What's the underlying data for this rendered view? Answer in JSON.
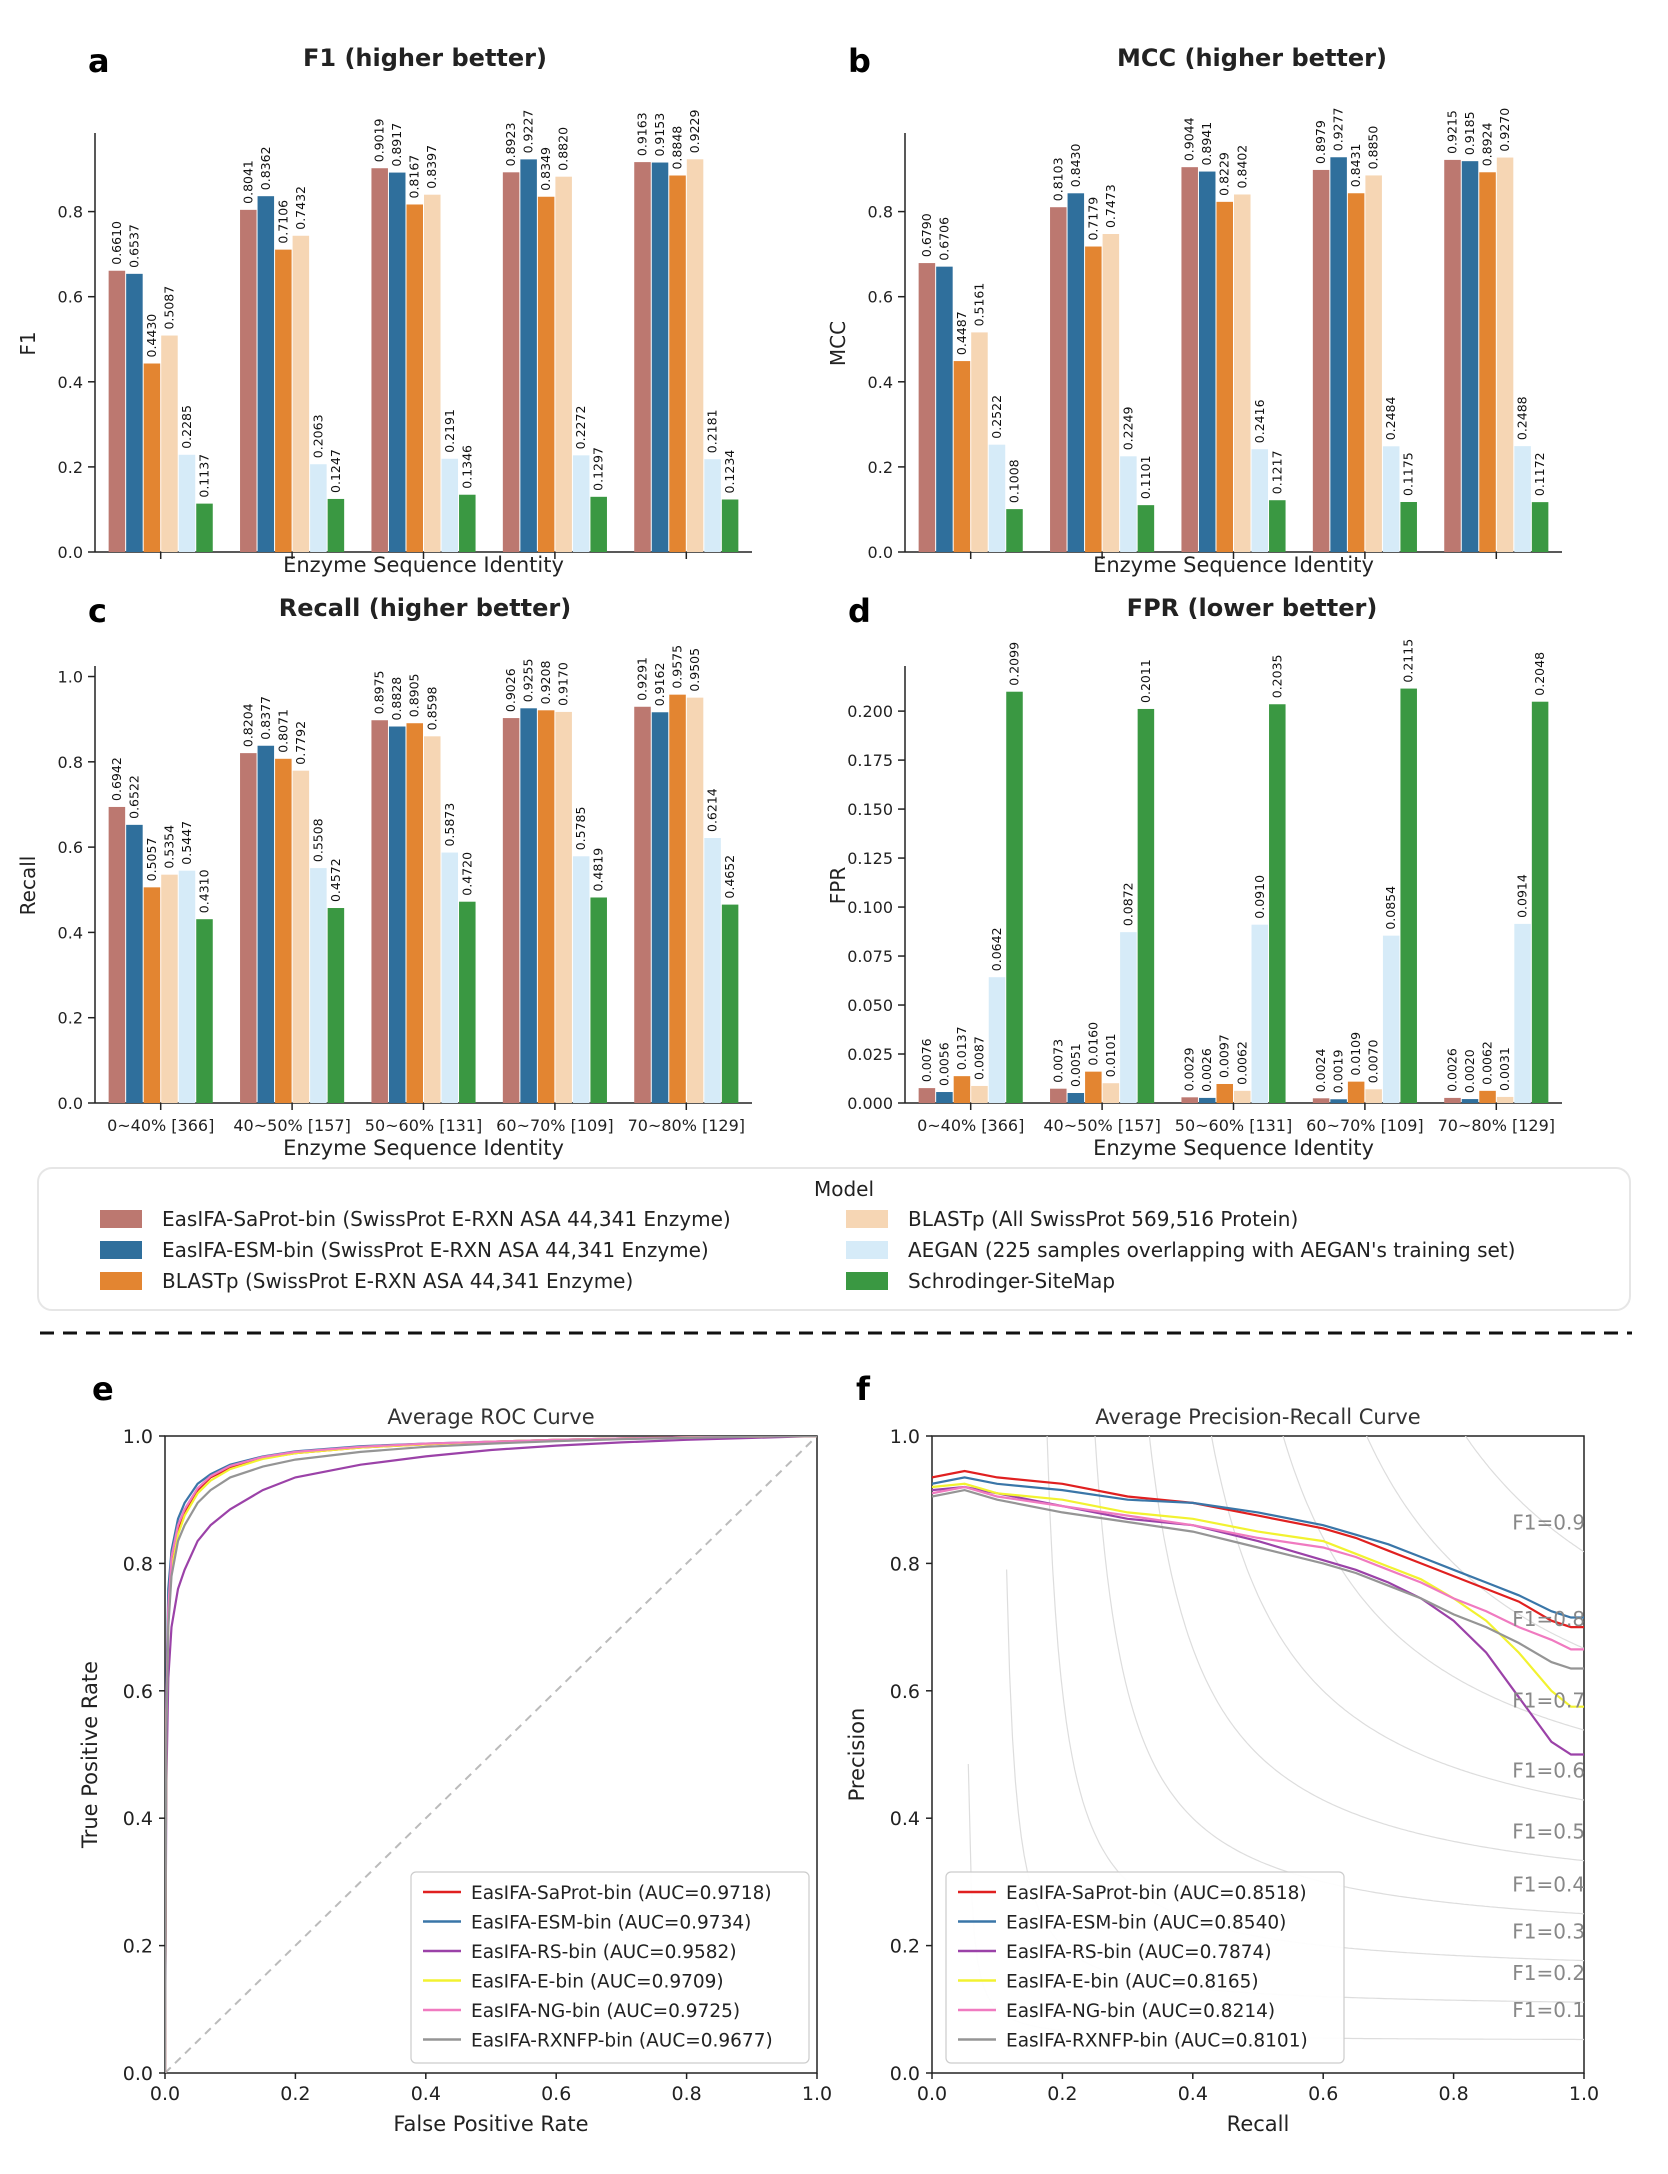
{
  "colors": {
    "saprot": "#bc7870",
    "esm": "#2f6f9c",
    "blastp_e": "#e38531",
    "blastp_all": "#f6d6b4",
    "aegan": "#d6ebf8",
    "schrodinger": "#3a9842",
    "rs": "#9b42a8",
    "e": "#f2f230",
    "ng": "#f07ac0",
    "rxnfp": "#959595",
    "saprot_line": "#e02020",
    "esm_line": "#3a76a8",
    "grid": "#dddddd",
    "diag": "#bbbbbb"
  },
  "bar_panels": {
    "categories": [
      "0~40% [366]",
      "40~50% [157]",
      "50~60% [131]",
      "60~70% [109]",
      "70~80% [129]"
    ],
    "xlabel": "Enzyme Sequence Identity",
    "series_keys": [
      "saprot",
      "esm",
      "blastp_e",
      "blastp_all",
      "aegan",
      "schrodinger"
    ]
  },
  "legend": {
    "title": "Model",
    "items": [
      "EasIFA-SaProt-bin (SwissProt E-RXN ASA 44,341 Enzyme)",
      "EasIFA-ESM-bin (SwissProt E-RXN ASA 44,341 Enzyme)",
      "BLASTp (SwissProt E-RXN ASA 44,341 Enzyme)",
      "BLASTp (All SwissProt 569,516 Protein)",
      "AEGAN (225 samples overlapping with AEGAN's training set)",
      "Schrodinger-SiteMap"
    ]
  },
  "chart_data": [
    {
      "panel": "a",
      "type": "bar",
      "title": "F1 (higher better)",
      "ylabel": "F1",
      "xlabel": "Enzyme Sequence Identity",
      "ylim": [
        0,
        0.98
      ],
      "yticks": [
        "0.0",
        "0.2",
        "0.4",
        "0.6",
        "0.8"
      ],
      "categories": [
        "0~40% [366]",
        "40~50% [157]",
        "50~60% [131]",
        "60~70% [109]",
        "70~80% [129]"
      ],
      "series": [
        {
          "name": "EasIFA-SaProt-bin (SwissProt E-RXN ASA 44,341 Enzyme)",
          "values": [
            "0.6610",
            "0.8041",
            "0.9019",
            "0.8923",
            "0.9163"
          ]
        },
        {
          "name": "EasIFA-ESM-bin (SwissProt E-RXN ASA 44,341 Enzyme)",
          "values": [
            "0.6537",
            "0.8362",
            "0.8917",
            "0.9227",
            "0.9153"
          ]
        },
        {
          "name": "BLASTp (SwissProt E-RXN ASA 44,341 Enzyme)",
          "values": [
            "0.4430",
            "0.7106",
            "0.8167",
            "0.8349",
            "0.8848"
          ]
        },
        {
          "name": "BLASTp (All SwissProt 569,516 Protein)",
          "values": [
            "0.5087",
            "0.7432",
            "0.8397",
            "0.8820",
            "0.9229"
          ]
        },
        {
          "name": "AEGAN (225 samples overlapping with AEGAN's training set)",
          "values": [
            "0.2285",
            "0.2063",
            "0.2191",
            "0.2272",
            "0.2181"
          ]
        },
        {
          "name": "Schrodinger-SiteMap",
          "values": [
            "0.1137",
            "0.1247",
            "0.1346",
            "0.1297",
            "0.1234"
          ]
        }
      ]
    },
    {
      "panel": "b",
      "type": "bar",
      "title": "MCC (higher better)",
      "ylabel": "MCC",
      "xlabel": "Enzyme Sequence Identity",
      "ylim": [
        0,
        0.98
      ],
      "yticks": [
        "0.0",
        "0.2",
        "0.4",
        "0.6",
        "0.8"
      ],
      "categories": [
        "0~40% [366]",
        "40~50% [157]",
        "50~60% [131]",
        "60~70% [109]",
        "70~80% [129]"
      ],
      "series": [
        {
          "name": "EasIFA-SaProt-bin (SwissProt E-RXN ASA 44,341 Enzyme)",
          "values": [
            "0.6790",
            "0.8103",
            "0.9044",
            "0.8979",
            "0.9215"
          ]
        },
        {
          "name": "EasIFA-ESM-bin (SwissProt E-RXN ASA 44,341 Enzyme)",
          "values": [
            "0.6706",
            "0.8430",
            "0.8941",
            "0.9277",
            "0.9185"
          ]
        },
        {
          "name": "BLASTp (SwissProt E-RXN ASA 44,341 Enzyme)",
          "values": [
            "0.4487",
            "0.7179",
            "0.8229",
            "0.8431",
            "0.8924"
          ]
        },
        {
          "name": "BLASTp (All SwissProt 569,516 Protein)",
          "values": [
            "0.5161",
            "0.7473",
            "0.8402",
            "0.8850",
            "0.9270"
          ]
        },
        {
          "name": "AEGAN (225 samples overlapping with AEGAN's training set)",
          "values": [
            "0.2522",
            "0.2249",
            "0.2416",
            "0.2484",
            "0.2488"
          ]
        },
        {
          "name": "Schrodinger-SiteMap",
          "values": [
            "0.1008",
            "0.1101",
            "0.1217",
            "0.1175",
            "0.1172"
          ]
        }
      ]
    },
    {
      "panel": "c",
      "type": "bar",
      "title": "Recall (higher better)",
      "ylabel": "Recall",
      "xlabel": "Enzyme Sequence Identity",
      "ylim": [
        0,
        1.02
      ],
      "yticks": [
        "0.0",
        "0.2",
        "0.4",
        "0.6",
        "0.8",
        "1.0"
      ],
      "categories": [
        "0~40% [366]",
        "40~50% [157]",
        "50~60% [131]",
        "60~70% [109]",
        "70~80% [129]"
      ],
      "series": [
        {
          "name": "EasIFA-SaProt-bin (SwissProt E-RXN ASA 44,341 Enzyme)",
          "values": [
            "0.6942",
            "0.8204",
            "0.8975",
            "0.9026",
            "0.9291"
          ]
        },
        {
          "name": "EasIFA-ESM-bin (SwissProt E-RXN ASA 44,341 Enzyme)",
          "values": [
            "0.6522",
            "0.8377",
            "0.8828",
            "0.9255",
            "0.9162"
          ]
        },
        {
          "name": "BLASTp (SwissProt E-RXN ASA 44,341 Enzyme)",
          "values": [
            "0.5057",
            "0.8071",
            "0.8905",
            "0.9208",
            "0.9575"
          ]
        },
        {
          "name": "BLASTp (All SwissProt 569,516 Protein)",
          "values": [
            "0.5354",
            "0.7792",
            "0.8598",
            "0.9170",
            "0.9505"
          ]
        },
        {
          "name": "AEGAN (225 samples overlapping with AEGAN's training set)",
          "values": [
            "0.5447",
            "0.5508",
            "0.5873",
            "0.5785",
            "0.6214"
          ]
        },
        {
          "name": "Schrodinger-SiteMap",
          "values": [
            "0.4310",
            "0.4572",
            "0.4720",
            "0.4819",
            "0.4652"
          ]
        }
      ]
    },
    {
      "panel": "d",
      "type": "bar",
      "title": "FPR (lower better)",
      "ylabel": "FPR",
      "xlabel": "Enzyme Sequence Identity",
      "ylim": [
        0,
        0.222
      ],
      "yticks": [
        "0.000",
        "0.025",
        "0.050",
        "0.075",
        "0.100",
        "0.125",
        "0.150",
        "0.175",
        "0.200"
      ],
      "categories": [
        "0~40% [366]",
        "40~50% [157]",
        "50~60% [131]",
        "60~70% [109]",
        "70~80% [129]"
      ],
      "series": [
        {
          "name": "EasIFA-SaProt-bin (SwissProt E-RXN ASA 44,341 Enzyme)",
          "values": [
            "0.0076",
            "0.0073",
            "0.0029",
            "0.0024",
            "0.0026"
          ]
        },
        {
          "name": "EasIFA-ESM-bin (SwissProt E-RXN ASA 44,341 Enzyme)",
          "values": [
            "0.0056",
            "0.0051",
            "0.0026",
            "0.0019",
            "0.0020"
          ]
        },
        {
          "name": "BLASTp (SwissProt E-RXN ASA 44,341 Enzyme)",
          "values": [
            "0.0137",
            "0.0160",
            "0.0097",
            "0.0109",
            "0.0062"
          ]
        },
        {
          "name": "BLASTp (All SwissProt 569,516 Protein)",
          "values": [
            "0.0087",
            "0.0101",
            "0.0062",
            "0.0070",
            "0.0031"
          ]
        },
        {
          "name": "AEGAN (225 samples overlapping with AEGAN's training set)",
          "values": [
            "0.0642",
            "0.0872",
            "0.0910",
            "0.0854",
            "0.0914"
          ]
        },
        {
          "name": "Schrodinger-SiteMap",
          "values": [
            "0.2099",
            "0.2011",
            "0.2035",
            "0.2115",
            "0.2048"
          ]
        }
      ]
    },
    {
      "panel": "e",
      "type": "line",
      "title": "Average ROC Curve",
      "xlabel": "False Positive Rate",
      "ylabel": "True Positive Rate",
      "xlim": [
        0,
        1
      ],
      "ylim": [
        0,
        1
      ],
      "ticks": [
        "0.0",
        "0.2",
        "0.4",
        "0.6",
        "0.8",
        "1.0"
      ],
      "legend_position": "lower right",
      "series": [
        {
          "name": "EasIFA-SaProt-bin (AUC=0.9718)",
          "color_key": "saprot_line",
          "x": [
            0,
            0.002,
            0.005,
            0.01,
            0.02,
            0.03,
            0.05,
            0.07,
            0.1,
            0.15,
            0.2,
            0.3,
            0.4,
            0.5,
            0.6,
            0.7,
            0.8,
            0.9,
            1.0
          ],
          "y": [
            0,
            0.55,
            0.72,
            0.8,
            0.85,
            0.88,
            0.915,
            0.935,
            0.95,
            0.965,
            0.973,
            0.982,
            0.987,
            0.991,
            0.994,
            0.996,
            0.998,
            0.999,
            1.0
          ]
        },
        {
          "name": "EasIFA-ESM-bin (AUC=0.9734)",
          "color_key": "esm_line",
          "x": [
            0,
            0.002,
            0.005,
            0.01,
            0.02,
            0.03,
            0.05,
            0.07,
            0.1,
            0.15,
            0.2,
            0.3,
            0.4,
            0.5,
            0.6,
            0.7,
            0.8,
            0.9,
            1.0
          ],
          "y": [
            0,
            0.6,
            0.76,
            0.82,
            0.87,
            0.895,
            0.925,
            0.94,
            0.955,
            0.968,
            0.976,
            0.984,
            0.988,
            0.991,
            0.994,
            0.996,
            0.998,
            0.999,
            1.0
          ]
        },
        {
          "name": "EasIFA-RS-bin (AUC=0.9582)",
          "color_key": "rs",
          "x": [
            0,
            0.002,
            0.005,
            0.01,
            0.02,
            0.03,
            0.05,
            0.07,
            0.1,
            0.15,
            0.2,
            0.3,
            0.4,
            0.5,
            0.6,
            0.7,
            0.8,
            0.9,
            1.0
          ],
          "y": [
            0,
            0.45,
            0.62,
            0.7,
            0.76,
            0.79,
            0.835,
            0.86,
            0.885,
            0.915,
            0.935,
            0.955,
            0.968,
            0.978,
            0.985,
            0.99,
            0.994,
            0.997,
            1.0
          ]
        },
        {
          "name": "EasIFA-E-bin  (AUC=0.9709)",
          "color_key": "e",
          "x": [
            0,
            0.002,
            0.005,
            0.01,
            0.02,
            0.03,
            0.05,
            0.07,
            0.1,
            0.15,
            0.2,
            0.3,
            0.4,
            0.5,
            0.6,
            0.7,
            0.8,
            0.9,
            1.0
          ],
          "y": [
            0,
            0.55,
            0.71,
            0.79,
            0.845,
            0.875,
            0.91,
            0.93,
            0.948,
            0.964,
            0.973,
            0.982,
            0.987,
            0.991,
            0.994,
            0.996,
            0.998,
            0.999,
            1.0
          ]
        },
        {
          "name": "EasIFA-NG-bin (AUC=0.9725)",
          "color_key": "ng",
          "x": [
            0,
            0.002,
            0.005,
            0.01,
            0.02,
            0.03,
            0.05,
            0.07,
            0.1,
            0.15,
            0.2,
            0.3,
            0.4,
            0.5,
            0.6,
            0.7,
            0.8,
            0.9,
            1.0
          ],
          "y": [
            0,
            0.57,
            0.73,
            0.81,
            0.86,
            0.885,
            0.918,
            0.937,
            0.953,
            0.967,
            0.975,
            0.983,
            0.988,
            0.991,
            0.994,
            0.996,
            0.998,
            0.999,
            1.0
          ]
        },
        {
          "name": "EasIFA-RXNFP-bin (AUC=0.9677)",
          "color_key": "rxnfp",
          "x": [
            0,
            0.002,
            0.005,
            0.01,
            0.02,
            0.03,
            0.05,
            0.07,
            0.1,
            0.15,
            0.2,
            0.3,
            0.4,
            0.5,
            0.6,
            0.7,
            0.8,
            0.9,
            1.0
          ],
          "y": [
            0,
            0.53,
            0.7,
            0.78,
            0.835,
            0.86,
            0.895,
            0.915,
            0.935,
            0.952,
            0.963,
            0.975,
            0.983,
            0.988,
            0.992,
            0.995,
            0.997,
            0.999,
            1.0
          ]
        }
      ]
    },
    {
      "panel": "f",
      "type": "line",
      "title": "Average Precision-Recall Curve",
      "xlabel": "Recall",
      "ylabel": "Precision",
      "xlim": [
        0,
        1
      ],
      "ylim": [
        0,
        1
      ],
      "ticks": [
        "0.0",
        "0.2",
        "0.4",
        "0.6",
        "0.8",
        "1.0"
      ],
      "legend_position": "lower left",
      "iso_f1": [
        "F1=0.1",
        "F1=0.2",
        "F1=0.3",
        "F1=0.4",
        "F1=0.5",
        "F1=0.6",
        "F1=0.7",
        "F1=0.8",
        "F1=0.9"
      ],
      "series": [
        {
          "name": "EasIFA-SaProt-bin (AUC=0.8518)",
          "color_key": "saprot_line",
          "x": [
            0,
            0.05,
            0.1,
            0.2,
            0.3,
            0.4,
            0.5,
            0.6,
            0.65,
            0.7,
            0.75,
            0.8,
            0.85,
            0.9,
            0.95,
            0.98,
            1.0
          ],
          "y": [
            0.935,
            0.945,
            0.935,
            0.925,
            0.905,
            0.895,
            0.875,
            0.855,
            0.84,
            0.82,
            0.8,
            0.78,
            0.76,
            0.74,
            0.71,
            0.7,
            0.7
          ]
        },
        {
          "name": "EasIFA-ESM-bin (AUC=0.8540)",
          "color_key": "esm_line",
          "x": [
            0,
            0.05,
            0.1,
            0.2,
            0.3,
            0.4,
            0.5,
            0.6,
            0.65,
            0.7,
            0.75,
            0.8,
            0.85,
            0.9,
            0.95,
            0.98,
            1.0
          ],
          "y": [
            0.925,
            0.935,
            0.925,
            0.915,
            0.9,
            0.895,
            0.88,
            0.86,
            0.845,
            0.83,
            0.81,
            0.79,
            0.77,
            0.75,
            0.725,
            0.715,
            0.715
          ]
        },
        {
          "name": "EasIFA-RS-bin (AUC=0.7874)",
          "color_key": "rs",
          "x": [
            0,
            0.05,
            0.1,
            0.2,
            0.3,
            0.4,
            0.5,
            0.6,
            0.65,
            0.7,
            0.75,
            0.8,
            0.85,
            0.9,
            0.95,
            0.98,
            1.0
          ],
          "y": [
            0.915,
            0.92,
            0.91,
            0.89,
            0.87,
            0.86,
            0.835,
            0.805,
            0.79,
            0.77,
            0.745,
            0.71,
            0.66,
            0.59,
            0.52,
            0.5,
            0.5
          ]
        },
        {
          "name": "EasIFA-E-bin  (AUC=0.8165)",
          "color_key": "e",
          "x": [
            0,
            0.05,
            0.1,
            0.2,
            0.3,
            0.4,
            0.5,
            0.6,
            0.65,
            0.7,
            0.75,
            0.8,
            0.85,
            0.9,
            0.95,
            0.98,
            1.0
          ],
          "y": [
            0.92,
            0.925,
            0.91,
            0.9,
            0.88,
            0.87,
            0.85,
            0.835,
            0.815,
            0.795,
            0.775,
            0.745,
            0.71,
            0.66,
            0.6,
            0.575,
            0.575
          ]
        },
        {
          "name": "EasIFA-NG-bin (AUC=0.8214)",
          "color_key": "ng",
          "x": [
            0,
            0.05,
            0.1,
            0.2,
            0.3,
            0.4,
            0.5,
            0.6,
            0.65,
            0.7,
            0.75,
            0.8,
            0.85,
            0.9,
            0.95,
            0.98,
            1.0
          ],
          "y": [
            0.91,
            0.92,
            0.905,
            0.89,
            0.875,
            0.86,
            0.84,
            0.825,
            0.81,
            0.79,
            0.77,
            0.745,
            0.725,
            0.7,
            0.68,
            0.665,
            0.665
          ]
        },
        {
          "name": "EasIFA-RXNFP-bin (AUC=0.8101)",
          "color_key": "rxnfp",
          "x": [
            0,
            0.05,
            0.1,
            0.2,
            0.3,
            0.4,
            0.5,
            0.6,
            0.65,
            0.7,
            0.75,
            0.8,
            0.85,
            0.9,
            0.95,
            0.98,
            1.0
          ],
          "y": [
            0.905,
            0.915,
            0.9,
            0.88,
            0.865,
            0.85,
            0.825,
            0.8,
            0.785,
            0.765,
            0.745,
            0.72,
            0.7,
            0.675,
            0.645,
            0.635,
            0.635
          ]
        }
      ]
    }
  ]
}
